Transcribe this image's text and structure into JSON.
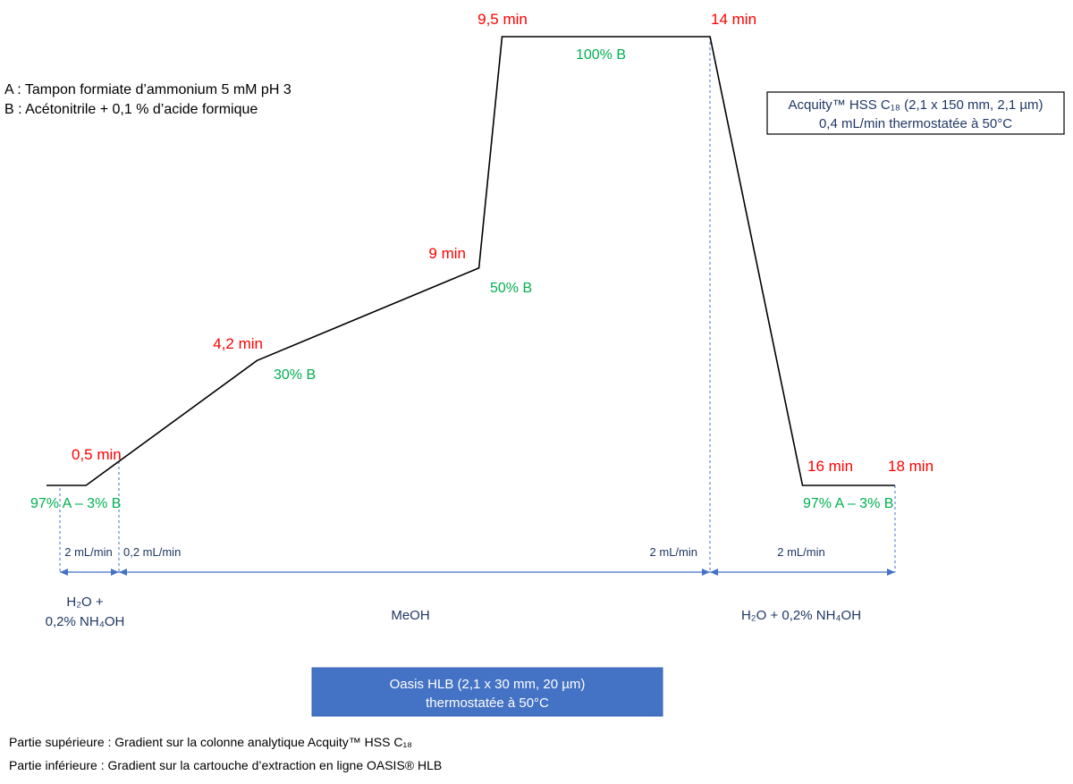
{
  "legend": {
    "solvent_a": "A : Tampon formiate d’ammonium 5 mM pH 3",
    "solvent_b": "B : Acétonitrile + 0,1 % d’acide formique"
  },
  "analytical_column": {
    "name": "Acquity™ HSS C₁₈ (2,1 x 150 mm, 2,1 µm)",
    "conditions": "0,4 mL/min thermostatée à 50°C"
  },
  "gradient": {
    "points": [
      {
        "time_label": "0,5 min",
        "t": 0.5,
        "B": 3
      },
      {
        "time_label": "4,2 min",
        "composition_label": "30% B",
        "t": 4.2,
        "B": 30
      },
      {
        "time_label": "9 min",
        "composition_label": "50% B",
        "t": 9,
        "B": 50
      },
      {
        "time_label": "9,5 min",
        "t": 9.5,
        "B": 100
      },
      {
        "time_label": "14 min",
        "t": 14,
        "B": 100
      },
      {
        "time_label": "16 min",
        "t": 16,
        "B": 3
      },
      {
        "time_label": "18 min",
        "t": 18,
        "B": 3
      }
    ],
    "plateau_labels": {
      "initial": "97% A – 3% B",
      "maximum": "100% B",
      "final": "97% A – 3% B"
    }
  },
  "extraction": {
    "segments": [
      {
        "flow": "2 mL/min",
        "solvent_line1": "H₂O +",
        "solvent_line2": "0,2% NH₄OH"
      },
      {
        "flow_start": "0,2 mL/min",
        "flow_end": "2 mL/min",
        "solvent": "MeOH"
      },
      {
        "flow": "2 mL/min",
        "solvent": "H₂O + 0,2% NH₄OH"
      }
    ],
    "cartridge": {
      "name": "Oasis HLB (2,1 x 30 mm, 20 µm)",
      "conditions": "thermostatée à 50°C"
    }
  },
  "footnotes": {
    "upper": "Partie supérieure : Gradient sur la colonne analytique Acquity™ HSS C₁₈",
    "lower": "Partie inférieure : Gradient sur la cartouche d’extraction en ligne OASIS® HLB"
  },
  "colors": {
    "time_labels": "#ff0000",
    "composition_labels": "#00b050",
    "annotations": "#1f3864",
    "accent": "#4472c4",
    "gradient_line": "#000000"
  }
}
